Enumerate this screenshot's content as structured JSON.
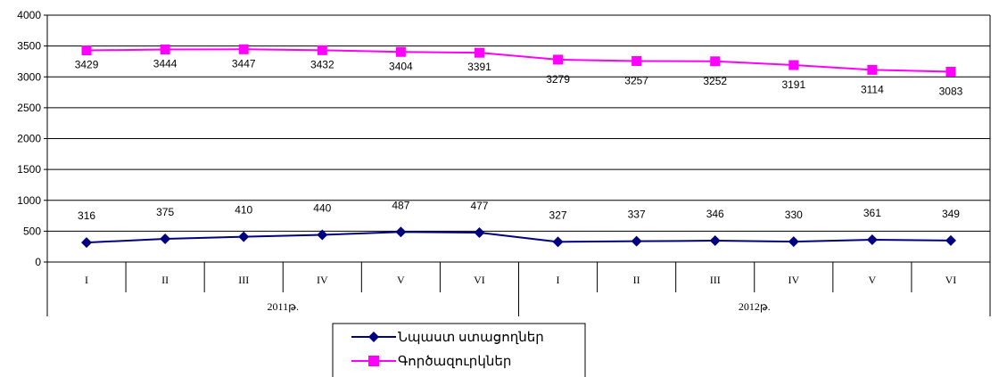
{
  "chart_data": {
    "type": "line",
    "title": "",
    "xlabel": "",
    "ylabel": "",
    "ylim": [
      0,
      4000
    ],
    "yticks": [
      0,
      500,
      1000,
      1500,
      2000,
      2500,
      3000,
      3500,
      4000
    ],
    "grid": "horizontal",
    "legend_position": "bottom",
    "categories": [
      "I",
      "II",
      "III",
      "IV",
      "V",
      "VI",
      "I",
      "II",
      "III",
      "IV",
      "V",
      "VI"
    ],
    "groups": [
      {
        "label": "2011թ.",
        "count": 6
      },
      {
        "label": "2012թ.",
        "count": 6
      }
    ],
    "series": [
      {
        "name": "Նպաստ ստացողներ",
        "color": "#000080",
        "marker": "diamond",
        "values": [
          316,
          375,
          410,
          440,
          487,
          477,
          327,
          337,
          346,
          330,
          361,
          349
        ]
      },
      {
        "name": "Գործազուրկներ",
        "color": "#ff00ff",
        "marker": "square",
        "values": [
          3429,
          3444,
          3447,
          3432,
          3404,
          3391,
          3279,
          3257,
          3252,
          3191,
          3114,
          3083
        ]
      }
    ]
  }
}
